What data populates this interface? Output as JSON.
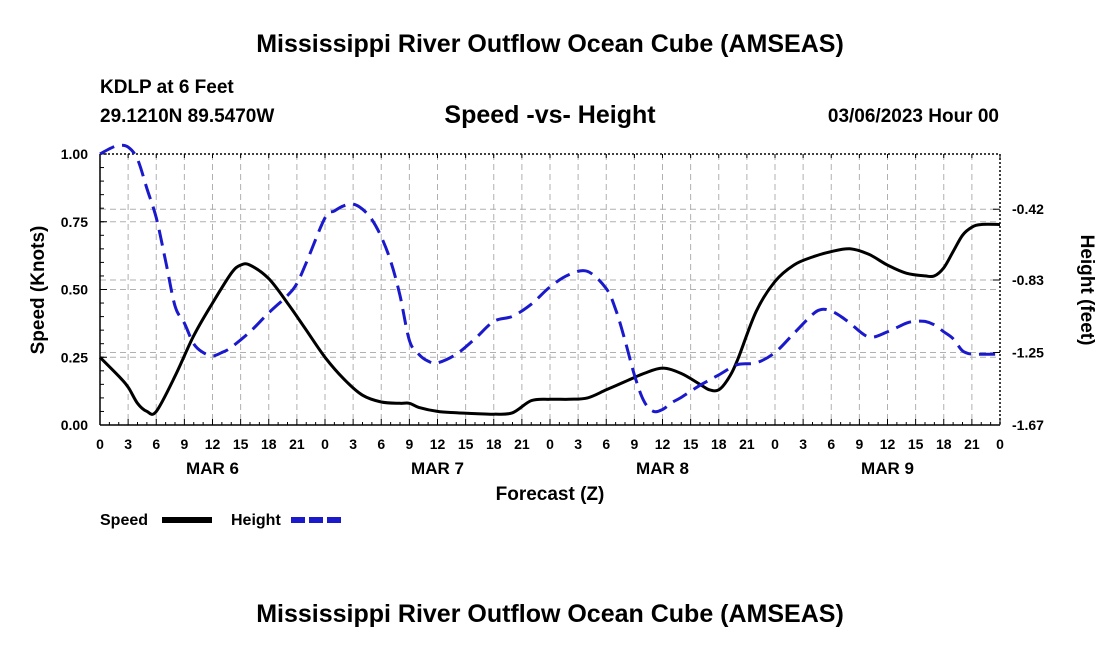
{
  "header": {
    "title": "Mississippi River Outflow Ocean Cube (AMSEAS)",
    "station": "KDLP at 6 Feet",
    "coords": "29.1210N  89.5470W",
    "subtitle": "Speed -vs- Height",
    "datetime": "03/06/2023 Hour 00"
  },
  "footer": {
    "title": "Mississippi River Outflow Ocean Cube (AMSEAS)"
  },
  "chart_data": {
    "type": "line",
    "xlabel": "Forecast (Z)",
    "ylabel": "Speed (Knots)",
    "y2label": "Height (feet)",
    "xlim": [
      0,
      96
    ],
    "ylim": [
      0,
      1
    ],
    "y2lim": [
      -1.67,
      -0.1
    ],
    "x_ticks": [
      0,
      3,
      6,
      9,
      12,
      15,
      18,
      21,
      24,
      27,
      30,
      33,
      36,
      39,
      42,
      45,
      48,
      51,
      54,
      57,
      60,
      63,
      66,
      69,
      72,
      75,
      78,
      81,
      84,
      87,
      90,
      93,
      96
    ],
    "x_tick_labels": [
      "0",
      "3",
      "6",
      "9",
      "12",
      "15",
      "18",
      "21",
      "0",
      "3",
      "6",
      "9",
      "12",
      "15",
      "18",
      "21",
      "0",
      "3",
      "6",
      "9",
      "12",
      "15",
      "18",
      "21",
      "0",
      "3",
      "6",
      "9",
      "12",
      "15",
      "18",
      "21",
      "0"
    ],
    "day_labels": [
      {
        "x": 12,
        "label": "MAR 6"
      },
      {
        "x": 36,
        "label": "MAR 7"
      },
      {
        "x": 60,
        "label": "MAR 8"
      },
      {
        "x": 84,
        "label": "MAR 9"
      }
    ],
    "y_ticks": [
      0,
      0.25,
      0.5,
      0.75,
      1.0
    ],
    "y_tick_labels": [
      "0.00",
      "0.25",
      "0.50",
      "0.75",
      "1.00"
    ],
    "y2_ticks": [
      -0.42,
      -0.83,
      -1.25,
      -1.67
    ],
    "y2_tick_labels": [
      "-0.42",
      "-0.83",
      "-1.25",
      "-1.67"
    ],
    "grid": true,
    "legend": [
      "Speed",
      "Height"
    ],
    "series": [
      {
        "name": "Speed",
        "axis": "left",
        "color": "#000000",
        "dash": "solid",
        "x": [
          0,
          2,
          3,
          4,
          5,
          6,
          8,
          10,
          12,
          14,
          15,
          16,
          18,
          20,
          22,
          24,
          26,
          28,
          30,
          32,
          33,
          34,
          36,
          38,
          40,
          42,
          44,
          46,
          48,
          50,
          52,
          54,
          56,
          58,
          60,
          62,
          64,
          65,
          66,
          67,
          68,
          70,
          72,
          74,
          76,
          78,
          80,
          82,
          84,
          86,
          88,
          89,
          90,
          91,
          92,
          93,
          94,
          96
        ],
        "y": [
          0.25,
          0.18,
          0.14,
          0.08,
          0.05,
          0.05,
          0.18,
          0.33,
          0.45,
          0.56,
          0.59,
          0.59,
          0.54,
          0.45,
          0.35,
          0.25,
          0.17,
          0.11,
          0.085,
          0.08,
          0.08,
          0.065,
          0.05,
          0.045,
          0.042,
          0.04,
          0.045,
          0.09,
          0.095,
          0.095,
          0.1,
          0.13,
          0.16,
          0.19,
          0.21,
          0.19,
          0.15,
          0.13,
          0.13,
          0.17,
          0.24,
          0.42,
          0.53,
          0.59,
          0.62,
          0.64,
          0.65,
          0.63,
          0.59,
          0.56,
          0.55,
          0.55,
          0.58,
          0.64,
          0.7,
          0.73,
          0.74,
          0.74
        ]
      },
      {
        "name": "Height",
        "axis": "right",
        "color": "#1a1acc",
        "dash": "dashed",
        "x": [
          0,
          1,
          2,
          3,
          4,
          5,
          6,
          7,
          8,
          9,
          10,
          11,
          12,
          13,
          14,
          16,
          18,
          20,
          21,
          22,
          24,
          25,
          26,
          27,
          28,
          29,
          30,
          31,
          32,
          33,
          34,
          35,
          36,
          38,
          40,
          42,
          44,
          46,
          48,
          50,
          52,
          54,
          55,
          56,
          57,
          58,
          59,
          60,
          61,
          62,
          64,
          66,
          68,
          70,
          72,
          74,
          76,
          77,
          78,
          79,
          80,
          82,
          84,
          86,
          87,
          88,
          89,
          90,
          91,
          92,
          93,
          94,
          96
        ],
        "y": [
          -0.1,
          -0.07,
          -0.05,
          -0.06,
          -0.13,
          -0.3,
          -0.47,
          -0.72,
          -0.98,
          -1.08,
          -1.2,
          -1.25,
          -1.27,
          -1.25,
          -1.22,
          -1.13,
          -1.02,
          -0.92,
          -0.85,
          -0.73,
          -0.47,
          -0.43,
          -0.4,
          -0.39,
          -0.42,
          -0.48,
          -0.58,
          -0.72,
          -0.92,
          -1.18,
          -1.26,
          -1.3,
          -1.31,
          -1.26,
          -1.17,
          -1.07,
          -1.04,
          -0.97,
          -0.87,
          -0.8,
          -0.78,
          -0.88,
          -1.0,
          -1.18,
          -1.38,
          -1.53,
          -1.59,
          -1.58,
          -1.54,
          -1.51,
          -1.44,
          -1.38,
          -1.32,
          -1.31,
          -1.25,
          -1.14,
          -1.03,
          -1.0,
          -1.01,
          -1.04,
          -1.08,
          -1.16,
          -1.13,
          -1.08,
          -1.07,
          -1.07,
          -1.09,
          -1.13,
          -1.17,
          -1.24,
          -1.26,
          -1.26,
          -1.26
        ]
      }
    ]
  }
}
